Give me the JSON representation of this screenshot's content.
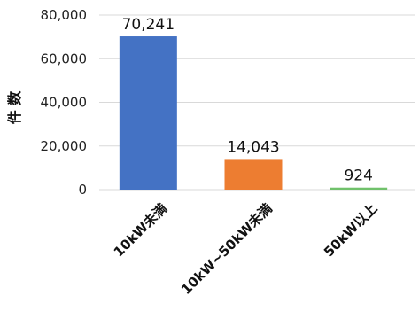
{
  "chart_data": {
    "type": "bar",
    "title": "",
    "xlabel": "",
    "ylabel": "件 数",
    "categories": [
      "10kW未満",
      "10kW~50kW未満",
      "50kW以上"
    ],
    "values": [
      70241,
      14043,
      924
    ],
    "data_labels": [
      "70,241",
      "14,043",
      "924"
    ],
    "colors": [
      "#4472C4",
      "#ED7D31",
      "#70C16B"
    ],
    "ylim": [
      0,
      80000
    ],
    "yticks": [
      0,
      20000,
      40000,
      60000,
      80000
    ],
    "ytick_labels": [
      "0",
      "20,000",
      "40,000",
      "60,000",
      "80,000"
    ],
    "grid": true,
    "gridline_color": "#d9d9d9"
  }
}
